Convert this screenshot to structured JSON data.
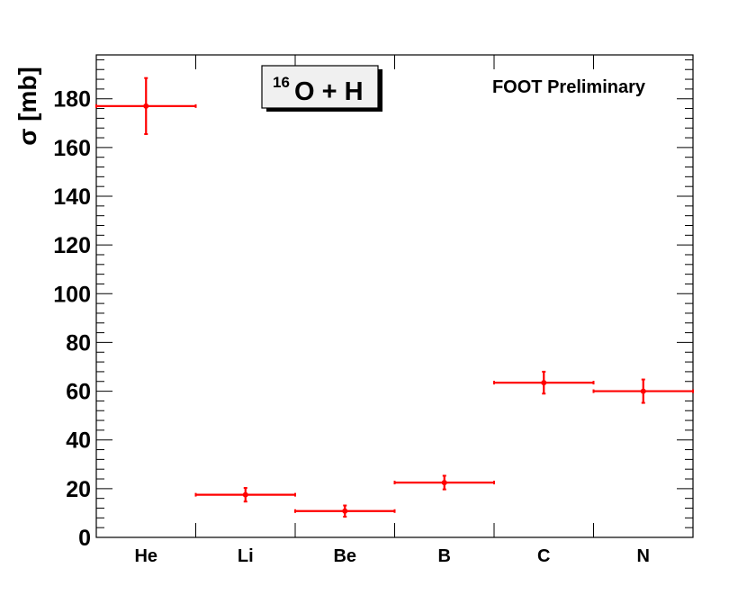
{
  "chart_data": {
    "type": "scatter",
    "title_superscript": "16",
    "title_main": "O + H",
    "annotation": "FOOT Preliminary",
    "ylabel": "σ [mb]",
    "xlabel": "",
    "categories": [
      "He",
      "Li",
      "Be",
      "B",
      "C",
      "N"
    ],
    "values": [
      177,
      17.5,
      10.8,
      22.5,
      63.5,
      60
    ],
    "errors": [
      11.5,
      2.8,
      2.3,
      2.8,
      4.5,
      4.8
    ],
    "ylim": [
      0,
      198
    ],
    "yticks": [
      0,
      20,
      40,
      60,
      80,
      100,
      120,
      140,
      160,
      180
    ],
    "grid": false,
    "marker_color": "#ff0000"
  }
}
